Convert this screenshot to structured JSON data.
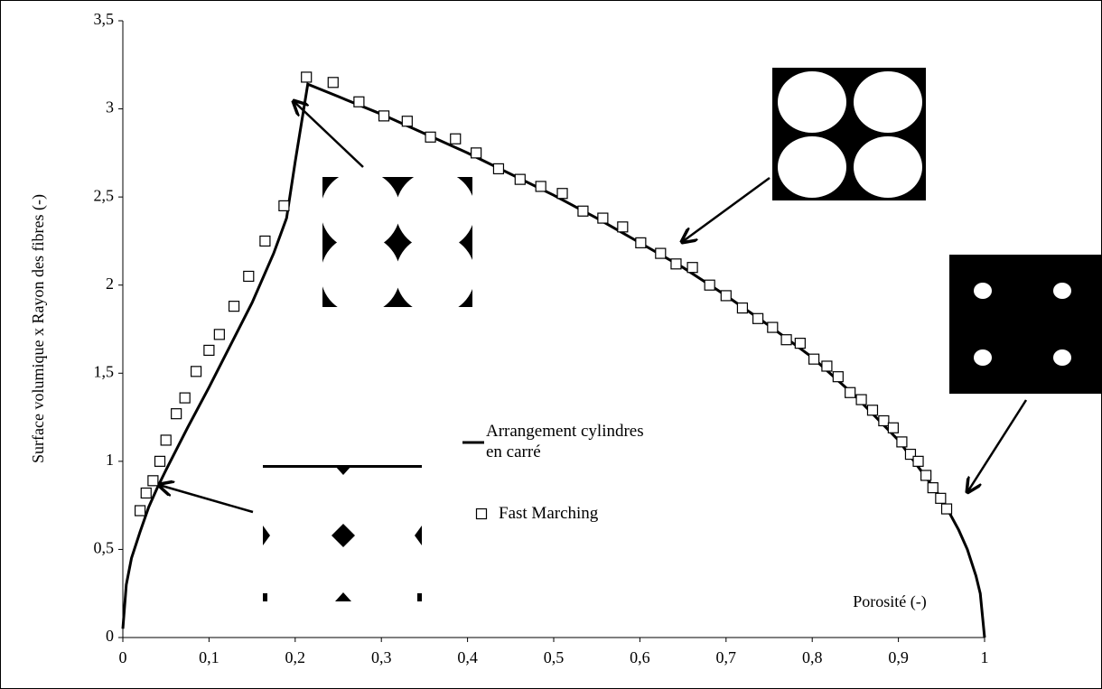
{
  "chart_data": {
    "type": "line",
    "y_label": "Surface volumique x Rayon des fibres (-)",
    "x_annotation": "Porosité (-)",
    "xlim": [
      0,
      1
    ],
    "ylim": [
      0,
      3.5
    ],
    "xticks": [
      0,
      {
        "value": 0.1,
        "label": "0,1"
      },
      {
        "value": 0.2,
        "label": "0,2"
      },
      {
        "value": 0.3,
        "label": "0,3"
      },
      {
        "value": 0.4,
        "label": "0,4"
      },
      {
        "value": 0.5,
        "label": "0,5"
      },
      {
        "value": 0.6,
        "label": "0,6"
      },
      {
        "value": 0.7,
        "label": "0,7"
      },
      {
        "value": 0.8,
        "label": "0,8"
      },
      {
        "value": 0.9,
        "label": "0,9"
      },
      1
    ],
    "yticks": [
      0,
      {
        "value": 0.5,
        "label": "0,5"
      },
      1,
      {
        "value": 1.5,
        "label": "1,5"
      },
      2,
      {
        "value": 2.5,
        "label": "2,5"
      },
      3,
      {
        "value": 3.5,
        "label": "3,5"
      }
    ],
    "grid": false,
    "series": [
      {
        "name": "Arrangement cylindres en carré",
        "color": "#000000",
        "style": "line",
        "x": [
          0,
          0.004,
          0.01,
          0.02,
          0.03,
          0.04,
          0.05,
          0.075,
          0.1,
          0.125,
          0.15,
          0.175,
          0.19,
          0.2,
          0.2146,
          0.25,
          0.3,
          0.35,
          0.4,
          0.45,
          0.5,
          0.55,
          0.6,
          0.65,
          0.7,
          0.75,
          0.8,
          0.85,
          0.9,
          0.95,
          0.97,
          0.98,
          0.99,
          0.995,
          1
        ],
        "values": [
          0.05,
          0.3,
          0.45,
          0.6,
          0.74,
          0.85,
          0.95,
          1.19,
          1.42,
          1.66,
          1.9,
          2.18,
          2.38,
          2.7,
          3.14,
          3.07,
          2.97,
          2.86,
          2.75,
          2.63,
          2.51,
          2.38,
          2.24,
          2.1,
          1.94,
          1.77,
          1.59,
          1.37,
          1.12,
          0.79,
          0.61,
          0.5,
          0.35,
          0.25,
          0
        ]
      },
      {
        "name": "Fast Marching",
        "color": "#000000",
        "style": "marker",
        "x": [
          0.02,
          0.027,
          0.035,
          0.043,
          0.05,
          0.062,
          0.072,
          0.085,
          0.1,
          0.112,
          0.129,
          0.146,
          0.165,
          0.187,
          0.213,
          0.244,
          0.274,
          0.303,
          0.33,
          0.357,
          0.386,
          0.41,
          0.436,
          0.461,
          0.485,
          0.51,
          0.534,
          0.557,
          0.58,
          0.601,
          0.624,
          0.642,
          0.661,
          0.681,
          0.7,
          0.719,
          0.737,
          0.754,
          0.77,
          0.786,
          0.802,
          0.817,
          0.83,
          0.844,
          0.857,
          0.87,
          0.883,
          0.894,
          0.904,
          0.914,
          0.923,
          0.932,
          0.94,
          0.949,
          0.956
        ],
        "values": [
          0.72,
          0.82,
          0.89,
          1.0,
          1.12,
          1.27,
          1.36,
          1.51,
          1.63,
          1.72,
          1.88,
          2.05,
          2.25,
          2.45,
          3.18,
          3.15,
          3.04,
          2.96,
          2.93,
          2.84,
          2.83,
          2.75,
          2.66,
          2.6,
          2.56,
          2.52,
          2.42,
          2.38,
          2.33,
          2.24,
          2.18,
          2.12,
          2.1,
          2.0,
          1.94,
          1.87,
          1.81,
          1.76,
          1.69,
          1.67,
          1.58,
          1.54,
          1.48,
          1.39,
          1.35,
          1.29,
          1.23,
          1.19,
          1.11,
          1.04,
          1.0,
          0.92,
          0.85,
          0.79,
          0.73
        ]
      }
    ]
  }
}
